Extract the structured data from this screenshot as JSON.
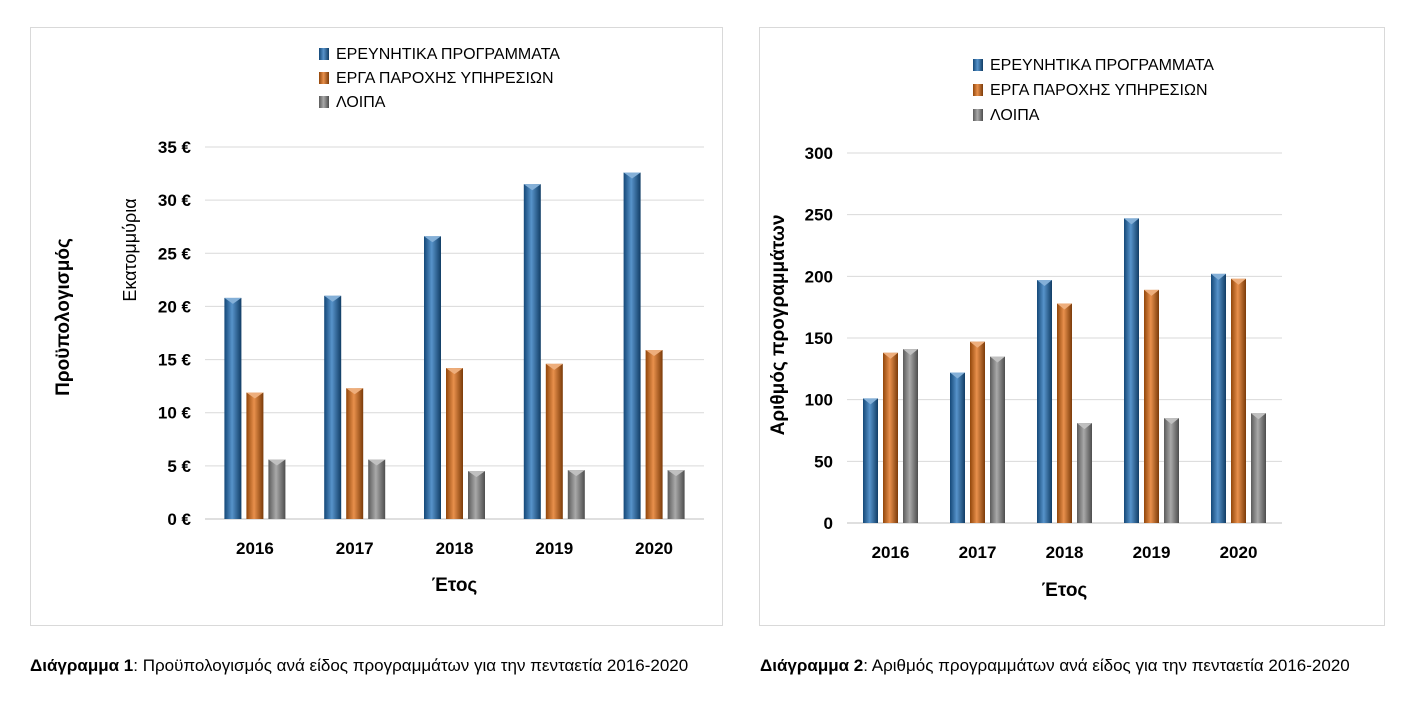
{
  "colors": {
    "series1": "#1f6fb8",
    "series2": "#e06b10",
    "series3": "#8c8c8c",
    "grid": "#d9d9d9",
    "border": "#d9d9d9"
  },
  "chart_data": [
    {
      "type": "bar",
      "title": "",
      "categories": [
        "2016",
        "2017",
        "2018",
        "2019",
        "2020"
      ],
      "series": [
        {
          "name": "ΕΡΕΥΝΗΤΙΚΑ ΠΡΟΓΡΑΜΜΑΤΑ",
          "values": [
            20.8,
            21.0,
            26.6,
            31.5,
            32.6
          ]
        },
        {
          "name": "ΕΡΓΑ ΠΑΡΟΧΗΣ ΥΠΗΡΕΣΙΩΝ",
          "values": [
            11.9,
            12.3,
            14.2,
            14.6,
            15.9
          ]
        },
        {
          "name": "ΛΟΙΠΑ",
          "values": [
            5.6,
            5.6,
            4.5,
            4.6,
            4.6
          ]
        }
      ],
      "xlabel": "Έτος",
      "ylabel": "Προϋπολογισμός",
      "ylabel_secondary": "Εκατομμύρια",
      "ylim": [
        0,
        35
      ],
      "yticks": [
        "0 €",
        "5 €",
        "10 €",
        "15 €",
        "20 €",
        "25 €",
        "30 €",
        "35 €"
      ],
      "grid": true,
      "legend": "top-center"
    },
    {
      "type": "bar",
      "title": "",
      "categories": [
        "2016",
        "2017",
        "2018",
        "2019",
        "2020"
      ],
      "series": [
        {
          "name": "ΕΡΕΥΝΗΤΙΚΑ ΠΡΟΓΡΑΜΜΑΤΑ",
          "values": [
            101,
            122,
            197,
            247,
            202
          ]
        },
        {
          "name": "ΕΡΓΑ ΠΑΡΟΧΗΣ ΥΠΗΡΕΣΙΩΝ",
          "values": [
            138,
            147,
            178,
            189,
            198
          ]
        },
        {
          "name": "ΛΟΙΠΑ",
          "values": [
            141,
            135,
            81,
            85,
            89
          ]
        }
      ],
      "xlabel": "Έτος",
      "ylabel": "Αριθμός προγραμμάτων",
      "ylim": [
        0,
        300
      ],
      "yticks": [
        "0",
        "50",
        "100",
        "150",
        "200",
        "250",
        "300"
      ],
      "grid": true,
      "legend": "top-center"
    }
  ],
  "captions": {
    "c1_bold": "Διάγραμμα 1",
    "c1_text": ": Προϋπολογισμός ανά είδος προγραμμάτων για την πενταετία 2016-2020",
    "c2_bold": "Διάγραμμα 2",
    "c2_text": ": Αριθμός προγραμμάτων  ανά είδος για την πενταετία 2016-2020"
  }
}
